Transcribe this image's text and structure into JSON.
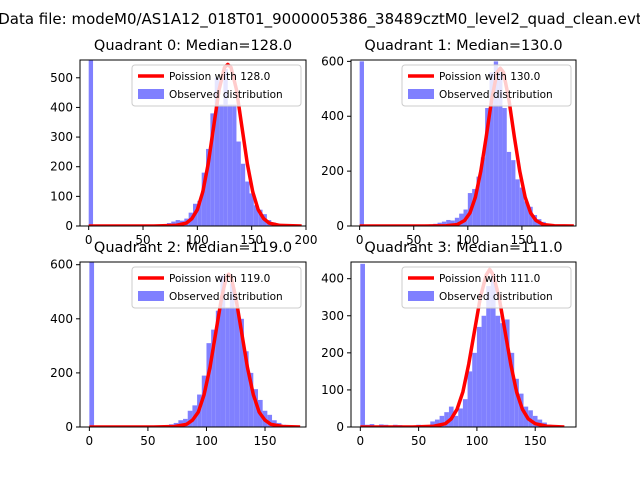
{
  "figure": {
    "title": "Data file: modeM0/AS1A12_018T01_9000005386_38489cztM0_level2_quad_clean.evt"
  },
  "colors": {
    "hist": "#8080ff",
    "curve": "#ff0000",
    "axis": "#000000"
  },
  "chart_data": [
    {
      "type": "bar",
      "title": "Quadrant 0: Median=128.0",
      "median": 128,
      "xlim": [
        -8,
        200
      ],
      "ylim": [
        0,
        560
      ],
      "xticks": [
        0,
        50,
        100,
        150,
        200
      ],
      "yticks": [
        0,
        100,
        200,
        300,
        400,
        500
      ],
      "legend": [
        "Poission with 128.0",
        "Observed distribution"
      ],
      "legend_position": "top-right",
      "hist": {
        "bin_width": 4,
        "x": [
          0,
          4,
          8,
          12,
          16,
          20,
          24,
          28,
          32,
          36,
          40,
          44,
          48,
          52,
          56,
          60,
          64,
          68,
          72,
          76,
          80,
          84,
          88,
          92,
          96,
          100,
          104,
          108,
          112,
          116,
          120,
          124,
          128,
          132,
          136,
          140,
          144,
          148,
          152,
          156,
          160,
          164,
          168,
          172,
          176,
          180,
          184,
          188,
          192
        ],
        "values": [
          560,
          2,
          1,
          1,
          1,
          2,
          1,
          1,
          1,
          2,
          1,
          1,
          2,
          2,
          3,
          2,
          4,
          6,
          10,
          15,
          20,
          18,
          25,
          45,
          75,
          85,
          180,
          260,
          380,
          500,
          410,
          530,
          410,
          410,
          285,
          210,
          150,
          110,
          70,
          55,
          40,
          20,
          12,
          8,
          5,
          3,
          2,
          1,
          2
        ]
      },
      "curve": {
        "x": [
          0,
          60,
          80,
          90,
          95,
          100,
          105,
          110,
          115,
          120,
          125,
          128,
          131,
          136,
          141,
          146,
          151,
          156,
          161,
          166,
          176,
          196
        ],
        "y": [
          0,
          0,
          2,
          10,
          25,
          55,
          115,
          210,
          335,
          460,
          535,
          545,
          535,
          460,
          335,
          210,
          115,
          55,
          25,
          10,
          2,
          0
        ]
      }
    },
    {
      "type": "bar",
      "title": "Quadrant 1: Median=130.0",
      "median": 130,
      "xlim": [
        -8,
        200
      ],
      "ylim": [
        0,
        605
      ],
      "xticks": [
        0,
        50,
        100,
        150
      ],
      "yticks": [
        0,
        200,
        400,
        600
      ],
      "legend": [
        "Poission with 130.0",
        "Observed distribution"
      ],
      "legend_position": "top-right",
      "hist": {
        "bin_width": 4,
        "x": [
          0,
          4,
          8,
          12,
          16,
          20,
          24,
          28,
          32,
          36,
          40,
          44,
          48,
          52,
          56,
          60,
          64,
          68,
          72,
          76,
          80,
          84,
          88,
          92,
          96,
          100,
          104,
          108,
          112,
          116,
          120,
          124,
          128,
          132,
          136,
          140,
          144,
          148,
          152,
          156,
          160,
          164,
          168,
          172,
          176,
          180,
          184,
          188
        ],
        "values": [
          600,
          2,
          1,
          1,
          2,
          1,
          1,
          2,
          1,
          1,
          2,
          1,
          3,
          2,
          3,
          4,
          6,
          8,
          12,
          16,
          22,
          20,
          30,
          45,
          60,
          120,
          135,
          180,
          250,
          430,
          560,
          600,
          560,
          430,
          270,
          240,
          170,
          140,
          90,
          70,
          40,
          25,
          15,
          6,
          4,
          3,
          2,
          1
        ]
      },
      "curve": {
        "x": [
          0,
          60,
          80,
          90,
          97,
          102,
          107,
          112,
          117,
          122,
          127,
          130,
          133,
          138,
          143,
          148,
          153,
          158,
          163,
          170,
          180,
          198
        ],
        "y": [
          0,
          0,
          1,
          5,
          20,
          48,
          105,
          200,
          325,
          460,
          560,
          575,
          560,
          460,
          325,
          200,
          105,
          48,
          20,
          5,
          1,
          0
        ]
      }
    },
    {
      "type": "bar",
      "title": "Quadrant 2: Median=119.0",
      "median": 119,
      "xlim": [
        -8,
        185
      ],
      "ylim": [
        0,
        610
      ],
      "xticks": [
        0,
        50,
        100,
        150
      ],
      "yticks": [
        0,
        200,
        400,
        600
      ],
      "legend": [
        "Poission with 119.0",
        "Observed distribution"
      ],
      "legend_position": "top-right",
      "hist": {
        "bin_width": 4,
        "x": [
          0,
          4,
          8,
          12,
          16,
          20,
          24,
          28,
          32,
          36,
          40,
          44,
          48,
          52,
          56,
          60,
          64,
          68,
          72,
          76,
          80,
          84,
          88,
          92,
          96,
          100,
          104,
          108,
          112,
          116,
          120,
          124,
          128,
          132,
          136,
          140,
          144,
          148,
          152,
          156,
          160,
          164,
          168,
          172,
          176
        ],
        "values": [
          610,
          2,
          1,
          1,
          2,
          1,
          1,
          1,
          2,
          1,
          1,
          2,
          2,
          3,
          4,
          5,
          6,
          10,
          15,
          25,
          30,
          60,
          80,
          120,
          190,
          310,
          360,
          430,
          560,
          440,
          530,
          440,
          400,
          280,
          200,
          140,
          100,
          60,
          45,
          25,
          15,
          8,
          4,
          2,
          1
        ]
      },
      "curve": {
        "x": [
          0,
          55,
          73,
          83,
          88,
          93,
          98,
          103,
          108,
          113,
          117,
          119,
          121,
          125,
          130,
          135,
          140,
          145,
          150,
          155,
          165,
          180
        ],
        "y": [
          0,
          0,
          2,
          10,
          25,
          55,
          120,
          220,
          350,
          480,
          555,
          565,
          555,
          480,
          350,
          220,
          120,
          55,
          25,
          10,
          2,
          0
        ]
      }
    },
    {
      "type": "bar",
      "title": "Quadrant 3: Median=111.0",
      "median": 111,
      "xlim": [
        -8,
        185
      ],
      "ylim": [
        0,
        445
      ],
      "xticks": [
        0,
        50,
        100,
        150
      ],
      "yticks": [
        0,
        100,
        200,
        300,
        400
      ],
      "legend": [
        "Poission with 111.0",
        "Observed distribution"
      ],
      "legend_position": "top-right",
      "hist": {
        "bin_width": 4,
        "x": [
          0,
          4,
          8,
          12,
          16,
          20,
          24,
          28,
          32,
          36,
          40,
          44,
          48,
          52,
          56,
          60,
          64,
          68,
          72,
          76,
          80,
          84,
          88,
          92,
          96,
          100,
          104,
          108,
          112,
          116,
          120,
          124,
          128,
          132,
          136,
          140,
          144,
          148,
          152,
          156,
          160,
          164,
          168
        ],
        "values": [
          440,
          6,
          8,
          4,
          7,
          6,
          4,
          6,
          5,
          4,
          3,
          4,
          6,
          5,
          5,
          15,
          20,
          30,
          40,
          55,
          30,
          50,
          75,
          150,
          200,
          270,
          300,
          380,
          410,
          300,
          280,
          290,
          200,
          130,
          90,
          55,
          45,
          30,
          20,
          12,
          6,
          3,
          2
        ]
      },
      "curve": {
        "x": [
          0,
          45,
          63,
          73,
          78,
          83,
          88,
          93,
          98,
          103,
          108,
          111,
          114,
          119,
          124,
          129,
          134,
          139,
          144,
          150,
          160,
          175
        ],
        "y": [
          0,
          0,
          2,
          9,
          22,
          48,
          95,
          170,
          260,
          350,
          410,
          425,
          410,
          350,
          260,
          170,
          95,
          48,
          22,
          9,
          2,
          0
        ]
      }
    }
  ]
}
